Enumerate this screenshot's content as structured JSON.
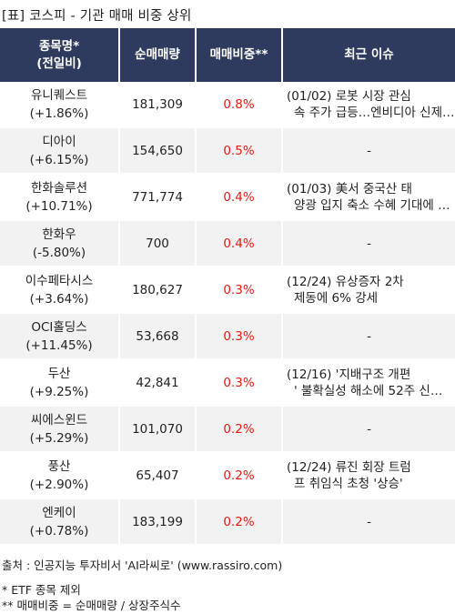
{
  "title": "[표] 코스피 - 기관 매매 비중 상위",
  "headers": {
    "name_line1": "종목명*",
    "name_line2": "(전일비)",
    "volume": "순매매량",
    "ratio": "매매비중**",
    "issue": "최근 이슈"
  },
  "rows": [
    {
      "name": "유니퀘스트",
      "change": "(+1.86%)",
      "volume": "181,309",
      "ratio": "0.8%",
      "issue1": "(01/02) 로봇 시장 관심",
      "issue2": "속 주가 급등…엔비디아 신제…"
    },
    {
      "name": "디아이",
      "change": "(+6.15%)",
      "volume": "154,650",
      "ratio": "0.5%",
      "issue1": "-",
      "issue2": ""
    },
    {
      "name": "한화솔루션",
      "change": "(+10.71%)",
      "volume": "771,774",
      "ratio": "0.4%",
      "issue1": "(01/03) 美서 중국산 태",
      "issue2": "양광 입지 축소 수혜 기대에 …"
    },
    {
      "name": "한화우",
      "change": "(-5.80%)",
      "volume": "700",
      "ratio": "0.4%",
      "issue1": "-",
      "issue2": ""
    },
    {
      "name": "이수페타시스",
      "change": "(+3.64%)",
      "volume": "180,627",
      "ratio": "0.3%",
      "issue1": "(12/24) 유상증자 2차",
      "issue2": "제동에 6% 강세"
    },
    {
      "name": "OCI홀딩스",
      "change": "(+11.45%)",
      "volume": "53,668",
      "ratio": "0.3%",
      "issue1": "-",
      "issue2": ""
    },
    {
      "name": "두산",
      "change": "(+9.25%)",
      "volume": "42,841",
      "ratio": "0.3%",
      "issue1": "(12/16) '지배구조 개편",
      "issue2": "' 불확실성 해소에 52주 신…"
    },
    {
      "name": "씨에스윈드",
      "change": "(+5.29%)",
      "volume": "101,070",
      "ratio": "0.2%",
      "issue1": "-",
      "issue2": ""
    },
    {
      "name": "풍산",
      "change": "(+2.90%)",
      "volume": "65,407",
      "ratio": "0.2%",
      "issue1": "(12/24) 류진 회장 트럼",
      "issue2": "프 취임식 초청 '상승'"
    },
    {
      "name": "엔케이",
      "change": "(+0.78%)",
      "volume": "183,199",
      "ratio": "0.2%",
      "issue1": "-",
      "issue2": ""
    }
  ],
  "footer": {
    "source": "출처 : 인공지능 투자비서 'AI라씨로' (www.rassiro.com)",
    "note1": "* ETF 종목 제외",
    "note2": "** 매매비중 = 순매매량 / 상장주식수"
  },
  "colors": {
    "header_bg": "#2f3b5e",
    "ratio_text": "#e8170f",
    "stripe": "#f2f2f2"
  }
}
